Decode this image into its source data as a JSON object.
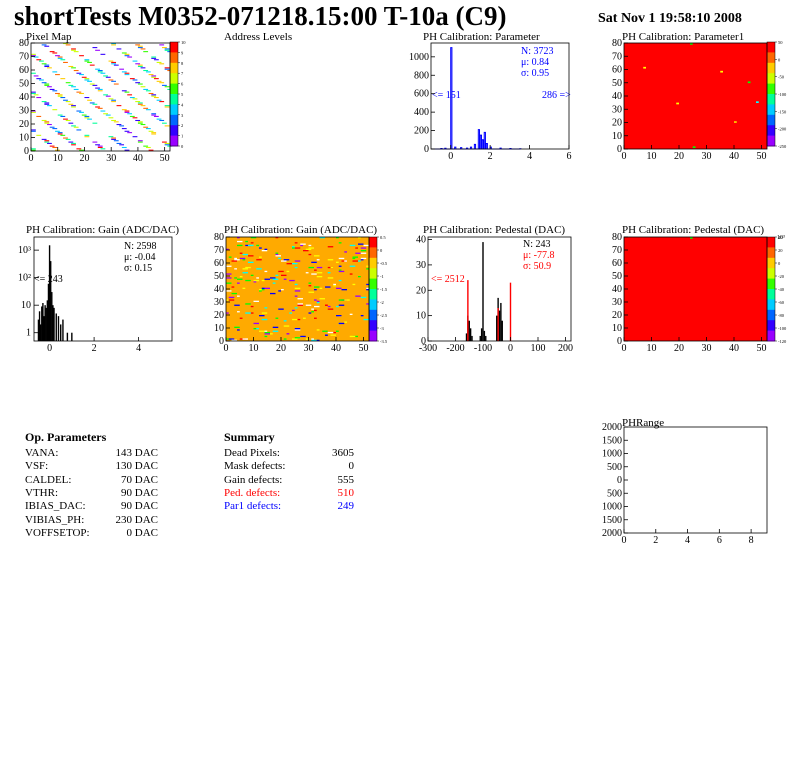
{
  "header": {
    "title": "shortTests M0352-071218.15:00 T-10a (C9)",
    "date": "Sat Nov  1 19:58:10 2008"
  },
  "colors": {
    "red": "#ff0000",
    "blue": "#0000ff",
    "orange": "#ffaa00",
    "black": "#000000"
  },
  "panels": {
    "pixel_map": {
      "title": "Pixel Map"
    },
    "address_levels": {
      "title": "Address Levels"
    },
    "ph_parameter": {
      "title": "PH Calibration: Parameter",
      "stats": {
        "n": "N: 3723",
        "mu": "μ: 0.84",
        "sigma": "σ: 0.95"
      },
      "under": "<= 151",
      "over": "286 =>"
    },
    "ph_parameter1": {
      "title": "PH Calibration: Parameter1"
    },
    "gain_hist": {
      "title": "PH Calibration: Gain (ADC/DAC)",
      "stats": {
        "n": "N: 2598",
        "mu": "μ: -0.04",
        "sigma": "σ: 0.15"
      },
      "under": "<= 243"
    },
    "gain_map": {
      "title": "PH Calibration: Gain (ADC/DAC)"
    },
    "pedestal_hist": {
      "title": "PH Calibration: Pedestal (DAC)",
      "stats": {
        "n": "N:  243",
        "mu": "μ: -77.8",
        "sigma": "σ: 50.9"
      },
      "under": "<= 2512"
    },
    "pedestal_map": {
      "title": "PH Calibration: Pedestal (DAC)",
      "scale_exp": "10³"
    },
    "ph_range": {
      "title": "PHRange"
    }
  },
  "op_parameters": {
    "title": "Op. Parameters",
    "rows": [
      {
        "name": "VANA:",
        "value": "143 DAC"
      },
      {
        "name": "VSF:",
        "value": "130 DAC"
      },
      {
        "name": "CALDEL:",
        "value": "70 DAC"
      },
      {
        "name": "VTHR:",
        "value": "90 DAC"
      },
      {
        "name": "IBIAS_DAC:",
        "value": "90 DAC"
      },
      {
        "name": "VIBIAS_PH:",
        "value": "230 DAC"
      },
      {
        "name": "VOFFSETOP:",
        "value": "0 DAC"
      }
    ]
  },
  "summary": {
    "title": "Summary",
    "rows": [
      {
        "name": "Dead Pixels:",
        "value": "3605",
        "color": "#000000"
      },
      {
        "name": "Mask defects:",
        "value": "0",
        "color": "#000000"
      },
      {
        "name": "Gain defects:",
        "value": "555",
        "color": "#000000"
      },
      {
        "name": "Ped. defects:",
        "value": "510",
        "color": "#ff0000"
      },
      {
        "name": "Par1 defects:",
        "value": "249",
        "color": "#0000ff"
      }
    ]
  },
  "chart_data": [
    {
      "id": "pixel_map",
      "type": "heatmap",
      "title": "Pixel Map",
      "xlim": [
        0,
        52
      ],
      "ylim": [
        0,
        80
      ],
      "x_ticks": [
        "0",
        "10",
        "20",
        "30",
        "40",
        "50"
      ],
      "y_ticks": [
        "0",
        "10",
        "20",
        "30",
        "40",
        "50",
        "60",
        "70",
        "80"
      ],
      "z_ticks": [
        "0",
        "1",
        "2",
        "3",
        "4",
        "5",
        "6",
        "7",
        "8",
        "9",
        "10"
      ]
    },
    {
      "id": "ph_parameter",
      "type": "bar",
      "title": "PH Calibration: Parameter",
      "xlim": [
        -1,
        6
      ],
      "ylim": [
        0,
        1150
      ],
      "x_ticks": [
        "0",
        "2",
        "4",
        "6"
      ],
      "y_ticks": [
        "0",
        "200",
        "400",
        "600",
        "800",
        "1000"
      ],
      "points": [
        [
          -0.5,
          5
        ],
        [
          -0.3,
          8
        ],
        [
          0,
          1100
        ],
        [
          0.2,
          20
        ],
        [
          0.5,
          15
        ],
        [
          0.8,
          10
        ],
        [
          1.0,
          20
        ],
        [
          1.2,
          50
        ],
        [
          1.4,
          210
        ],
        [
          1.5,
          150
        ],
        [
          1.6,
          100
        ],
        [
          1.7,
          180
        ],
        [
          1.8,
          60
        ],
        [
          2.0,
          20
        ],
        [
          2.5,
          10
        ],
        [
          3.0,
          5
        ],
        [
          3.5,
          3
        ]
      ]
    },
    {
      "id": "ph_parameter1",
      "type": "heatmap",
      "title": "PH Calibration: Parameter1",
      "xlim": [
        0,
        52
      ],
      "ylim": [
        0,
        80
      ],
      "x_ticks": [
        "0",
        "10",
        "20",
        "30",
        "40",
        "50"
      ],
      "y_ticks": [
        "0",
        "10",
        "20",
        "30",
        "40",
        "50",
        "60",
        "70",
        "80"
      ],
      "z_ticks": [
        "-250",
        "-200",
        "-150",
        "-100",
        "-50",
        "0",
        "50"
      ]
    },
    {
      "id": "gain_hist",
      "type": "bar",
      "title": "PH Calibration: Gain (ADC/DAC)",
      "log_y": true,
      "xlim": [
        -0.7,
        5.5
      ],
      "ylim": [
        0.5,
        3000
      ],
      "x_ticks": [
        "0",
        "2",
        "4"
      ],
      "y_ticks": [
        "1",
        "10",
        "10²",
        "10³"
      ],
      "points": [
        [
          -0.5,
          3
        ],
        [
          -0.45,
          6
        ],
        [
          -0.4,
          2
        ],
        [
          -0.35,
          9
        ],
        [
          -0.3,
          12
        ],
        [
          -0.25,
          4
        ],
        [
          -0.2,
          10
        ],
        [
          -0.15,
          8
        ],
        [
          -0.1,
          15
        ],
        [
          -0.05,
          60
        ],
        [
          0,
          1500
        ],
        [
          0.05,
          400
        ],
        [
          0.1,
          30
        ],
        [
          0.15,
          10
        ],
        [
          0.2,
          8
        ],
        [
          0.3,
          5
        ],
        [
          0.4,
          4
        ],
        [
          0.5,
          2
        ],
        [
          0.6,
          3
        ],
        [
          0.8,
          1
        ],
        [
          1.0,
          1
        ]
      ]
    },
    {
      "id": "gain_map",
      "type": "heatmap",
      "title": "PH Calibration: Gain (ADC/DAC)",
      "xlim": [
        0,
        52
      ],
      "ylim": [
        0,
        80
      ],
      "x_ticks": [
        "0",
        "10",
        "20",
        "30",
        "40",
        "50"
      ],
      "y_ticks": [
        "0",
        "10",
        "20",
        "30",
        "40",
        "50",
        "60",
        "70",
        "80"
      ],
      "z_ticks": [
        "-3.5",
        "-3",
        "-2.5",
        "-2",
        "-1.5",
        "-1",
        "-0.5",
        "0",
        "0.5"
      ]
    },
    {
      "id": "pedestal_hist",
      "type": "bar",
      "title": "PH Calibration: Pedestal (DAC)",
      "xlim": [
        -300,
        220
      ],
      "ylim": [
        0,
        41
      ],
      "x_ticks": [
        "-300",
        "-200",
        "-100",
        "0",
        "100",
        "200"
      ],
      "y_ticks": [
        "0",
        "10",
        "20",
        "30",
        "40"
      ],
      "series": [
        {
          "color": "#000000",
          "points": [
            [
              -160,
              3
            ],
            [
              -155,
              10
            ],
            [
              -150,
              8
            ],
            [
              -145,
              5
            ],
            [
              -140,
              2
            ],
            [
              -110,
              2
            ],
            [
              -105,
              5
            ],
            [
              -100,
              39
            ],
            [
              -95,
              4
            ],
            [
              -90,
              2
            ],
            [
              -50,
              10
            ],
            [
              -45,
              17
            ],
            [
              -40,
              12
            ],
            [
              -35,
              15
            ],
            [
              -30,
              8
            ]
          ]
        },
        {
          "color": "#ff0000",
          "points": [
            [
              -155,
              24
            ],
            [
              -45,
              13
            ],
            [
              0,
              23
            ]
          ]
        }
      ]
    },
    {
      "id": "pedestal_map",
      "type": "heatmap",
      "title": "PH Calibration: Pedestal (DAC)",
      "xlim": [
        0,
        52
      ],
      "ylim": [
        0,
        80
      ],
      "x_ticks": [
        "0",
        "10",
        "20",
        "30",
        "40",
        "50"
      ],
      "y_ticks": [
        "0",
        "10",
        "20",
        "30",
        "40",
        "50",
        "60",
        "70",
        "80"
      ],
      "z_ticks": [
        "-120",
        "-100",
        "-80",
        "-60",
        "-40",
        "-20",
        "0",
        "20",
        "40"
      ]
    },
    {
      "id": "ph_range",
      "type": "scatter",
      "title": "PHRange",
      "xlim": [
        0,
        9
      ],
      "ylim": [
        0,
        2000
      ],
      "x_ticks": [
        "0",
        "2",
        "4",
        "6",
        "8"
      ],
      "y_ticks": [
        "2000",
        "1500",
        "1000",
        "500",
        "0",
        "500",
        "1000",
        "1500",
        "2000"
      ],
      "points": []
    }
  ]
}
